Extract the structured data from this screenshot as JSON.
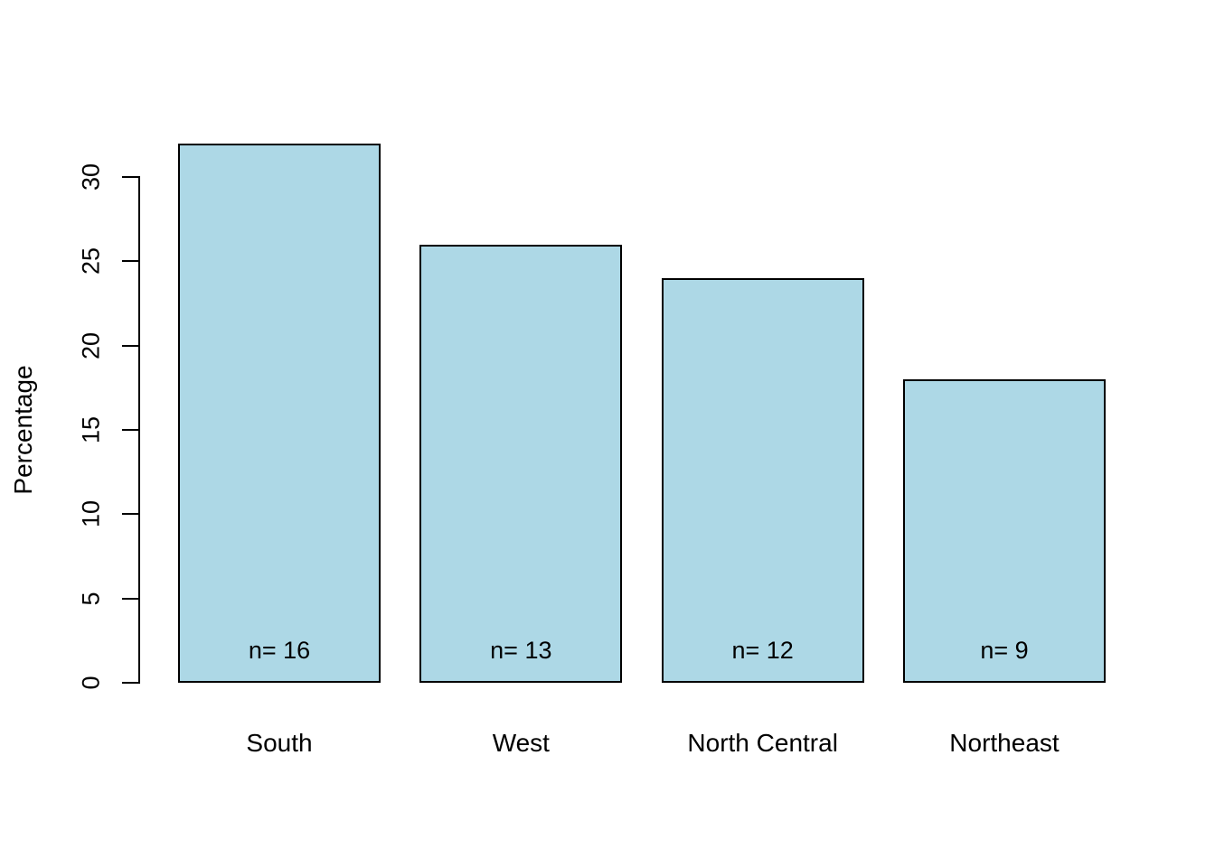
{
  "chart_data": {
    "type": "bar",
    "title": "",
    "xlabel": "",
    "ylabel": "Percentage",
    "categories": [
      "South",
      "West",
      "North Central",
      "Northeast"
    ],
    "values": [
      32,
      26,
      24,
      18
    ],
    "counts": [
      16,
      13,
      12,
      9
    ],
    "bar_labels": [
      "n= 16",
      "n= 13",
      "n= 12",
      "n= 9"
    ],
    "yticks": [
      0,
      5,
      10,
      15,
      20,
      25,
      30
    ],
    "ylim": [
      0,
      30
    ],
    "grid": false,
    "legend": null,
    "colors": {
      "bar_fill": "#ADD8E6",
      "bar_border": "#000000",
      "axis": "#000000",
      "text": "#000000",
      "background": "#FFFFFF"
    }
  }
}
